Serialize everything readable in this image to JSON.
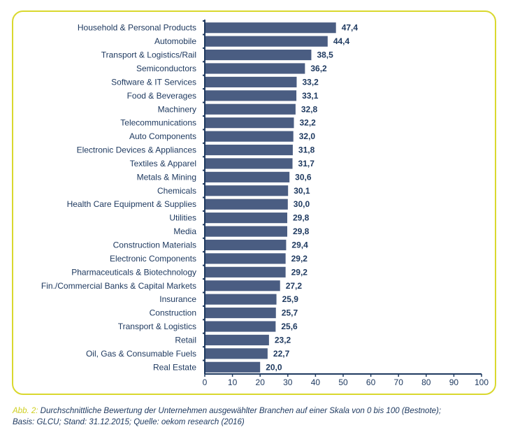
{
  "chart_data": {
    "type": "bar",
    "orientation": "horizontal",
    "title": "",
    "xlabel": "",
    "ylabel": "",
    "xlim": [
      0,
      100
    ],
    "xticks": [
      0,
      10,
      20,
      30,
      40,
      50,
      60,
      70,
      80,
      90,
      100
    ],
    "grid": false,
    "legend": null,
    "bar_color": "#4a5d82",
    "axis_color": "#1f3a60",
    "frame_color": "#d9d82e",
    "categories": [
      "Household & Personal Products",
      "Automobile",
      "Transport & Logistics/Rail",
      "Semiconductors",
      "Software & IT Services",
      "Food & Beverages",
      "Machinery",
      "Telecommunications",
      "Auto Components",
      "Electronic Devices & Appliances",
      "Textiles & Apparel",
      "Metals & Mining",
      "Chemicals",
      "Health Care Equipment & Supplies",
      "Utilities",
      "Media",
      "Construction Materials",
      "Electronic Components",
      "Pharmaceuticals & Biotechnology",
      "Fin./Commercial Banks & Capital Markets",
      "Insurance",
      "Construction",
      "Transport & Logistics",
      "Retail",
      "Oil, Gas & Consumable Fuels",
      "Real Estate"
    ],
    "values": [
      47.4,
      44.4,
      38.5,
      36.2,
      33.2,
      33.1,
      32.8,
      32.2,
      32.0,
      31.8,
      31.7,
      30.6,
      30.1,
      30.0,
      29.8,
      29.8,
      29.4,
      29.2,
      29.2,
      27.2,
      25.9,
      25.7,
      25.6,
      23.2,
      22.7,
      20.0
    ],
    "value_labels": [
      "47,4",
      "44,4",
      "38,5",
      "36,2",
      "33,2",
      "33,1",
      "32,8",
      "32,2",
      "32,0",
      "31,8",
      "31,7",
      "30,6",
      "30,1",
      "30,0",
      "29,8",
      "29,8",
      "29,4",
      "29,2",
      "29,2",
      "27,2",
      "25,9",
      "25,7",
      "25,6",
      "23,2",
      "22,7",
      "20,0"
    ]
  },
  "caption": {
    "prefix": "Abb. 2:",
    "line1": "Durchschnittliche Bewertung der Unternehmen ausgewählter Branchen auf einer Skala von 0 bis 100 (Bestnote);",
    "line2": "Basis: GLCU; Stand: 31.12.2015; Quelle: oekom research (2016)"
  }
}
